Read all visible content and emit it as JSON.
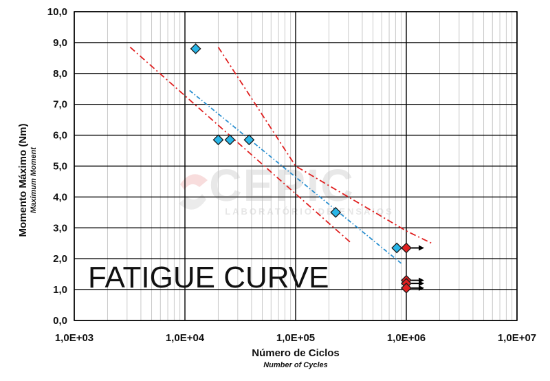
{
  "chart_data": {
    "type": "scatter",
    "title": "FATIGUE CURVE",
    "xlabel": "Número de Ciclos",
    "xlabel_sub": "Number of Cycles",
    "ylabel": "Momento Máximo (Nm)",
    "ylabel_sub": "Maximum Moment",
    "x_scale": "log",
    "xlim": [
      1000,
      10000000
    ],
    "ylim": [
      0,
      10
    ],
    "x_ticks": [
      1000,
      10000,
      100000,
      1000000,
      10000000
    ],
    "x_tick_labels": [
      "1,0E+03",
      "1,0E+04",
      "1,0E+05",
      "1,0E+06",
      "1,0E+07"
    ],
    "y_ticks": [
      0,
      1,
      2,
      3,
      4,
      5,
      6,
      7,
      8,
      9,
      10
    ],
    "y_tick_labels": [
      "0,0",
      "1,0",
      "2,0",
      "3,0",
      "4,0",
      "5,0",
      "6,0",
      "7,0",
      "8,0",
      "9,0",
      "10,0"
    ],
    "grid": true,
    "series": [
      {
        "kind": "failure",
        "marker": "diamond",
        "color": "#29b6e8",
        "points": [
          {
            "x": 12500,
            "y": 8.8
          },
          {
            "x": 20000,
            "y": 5.85
          },
          {
            "x": 25500,
            "y": 5.85
          },
          {
            "x": 38000,
            "y": 5.85
          },
          {
            "x": 230000,
            "y": 3.5
          },
          {
            "x": 820000,
            "y": 2.35
          }
        ]
      },
      {
        "kind": "runout",
        "marker": "diamond",
        "color": "#e02020",
        "arrow": true,
        "points": [
          {
            "x": 1000000,
            "y": 2.35
          },
          {
            "x": 1000000,
            "y": 1.3
          },
          {
            "x": 1000000,
            "y": 1.2
          },
          {
            "x": 1000000,
            "y": 1.05
          }
        ]
      },
      {
        "kind": "mean-fit",
        "line": "dash-dot",
        "color": "#2a8fd0",
        "points": [
          {
            "x": 11000,
            "y": 7.45
          },
          {
            "x": 900000,
            "y": 1.85
          }
        ]
      },
      {
        "kind": "lower-bound",
        "line": "dash-dot",
        "color": "#e02020",
        "points": [
          {
            "x": 3200,
            "y": 8.85
          },
          {
            "x": 320000,
            "y": 2.5
          }
        ]
      },
      {
        "kind": "upper-bound",
        "line": "dash-dot",
        "color": "#e02020",
        "points": [
          {
            "x": 20000,
            "y": 8.85
          },
          {
            "x": 100000,
            "y": 5.0
          },
          {
            "x": 1000000,
            "y": 2.9
          },
          {
            "x": 1700000,
            "y": 2.5
          }
        ]
      }
    ]
  },
  "watermark": {
    "brand": "CEPIC",
    "tagline": "LABORATÓRIO DE ENSAIOS"
  },
  "colors": {
    "grid": "#000000",
    "minor_grid": "#c8c8c8",
    "failure_marker": "#29b6e8",
    "runout_marker": "#e02020",
    "fit_line": "#2a8fd0",
    "bound_line": "#e02020"
  }
}
